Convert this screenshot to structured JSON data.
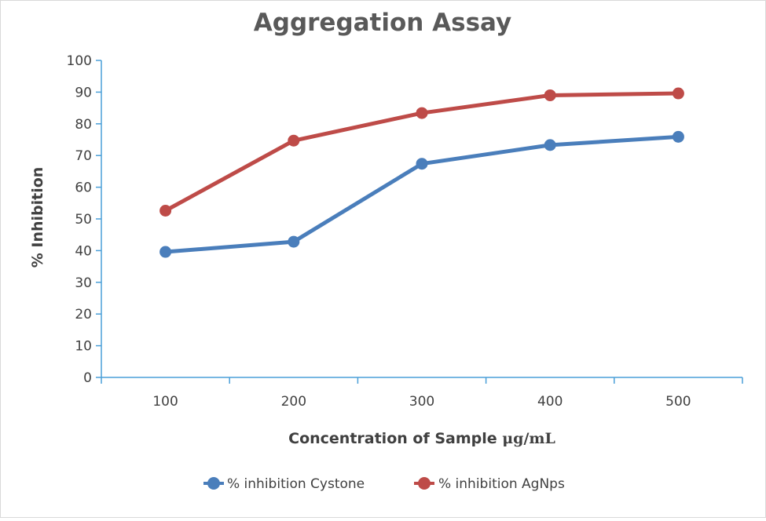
{
  "chart_data": {
    "type": "line",
    "title": "Aggregation Assay",
    "xlabel": "Concentration of Sample",
    "xlabel_unit": "μg/mL",
    "ylabel": "% Inhibition",
    "categories": [
      "100",
      "200",
      "300",
      "400",
      "500"
    ],
    "ylim": [
      0,
      100
    ],
    "yticks": [
      "0",
      "10",
      "20",
      "30",
      "40",
      "50",
      "60",
      "70",
      "80",
      "90",
      "100"
    ],
    "grid": false,
    "legend_position": "bottom",
    "series": [
      {
        "name": "% inhibition Cystone",
        "values": [
          39.6,
          42.8,
          67.4,
          73.3,
          75.9
        ],
        "color": "#4a7ebb"
      },
      {
        "name": "% inhibition AgNps",
        "values": [
          52.6,
          74.7,
          83.4,
          89.0,
          89.6
        ],
        "color": "#be4b48"
      }
    ],
    "axis_color": "#4a9fd8"
  }
}
